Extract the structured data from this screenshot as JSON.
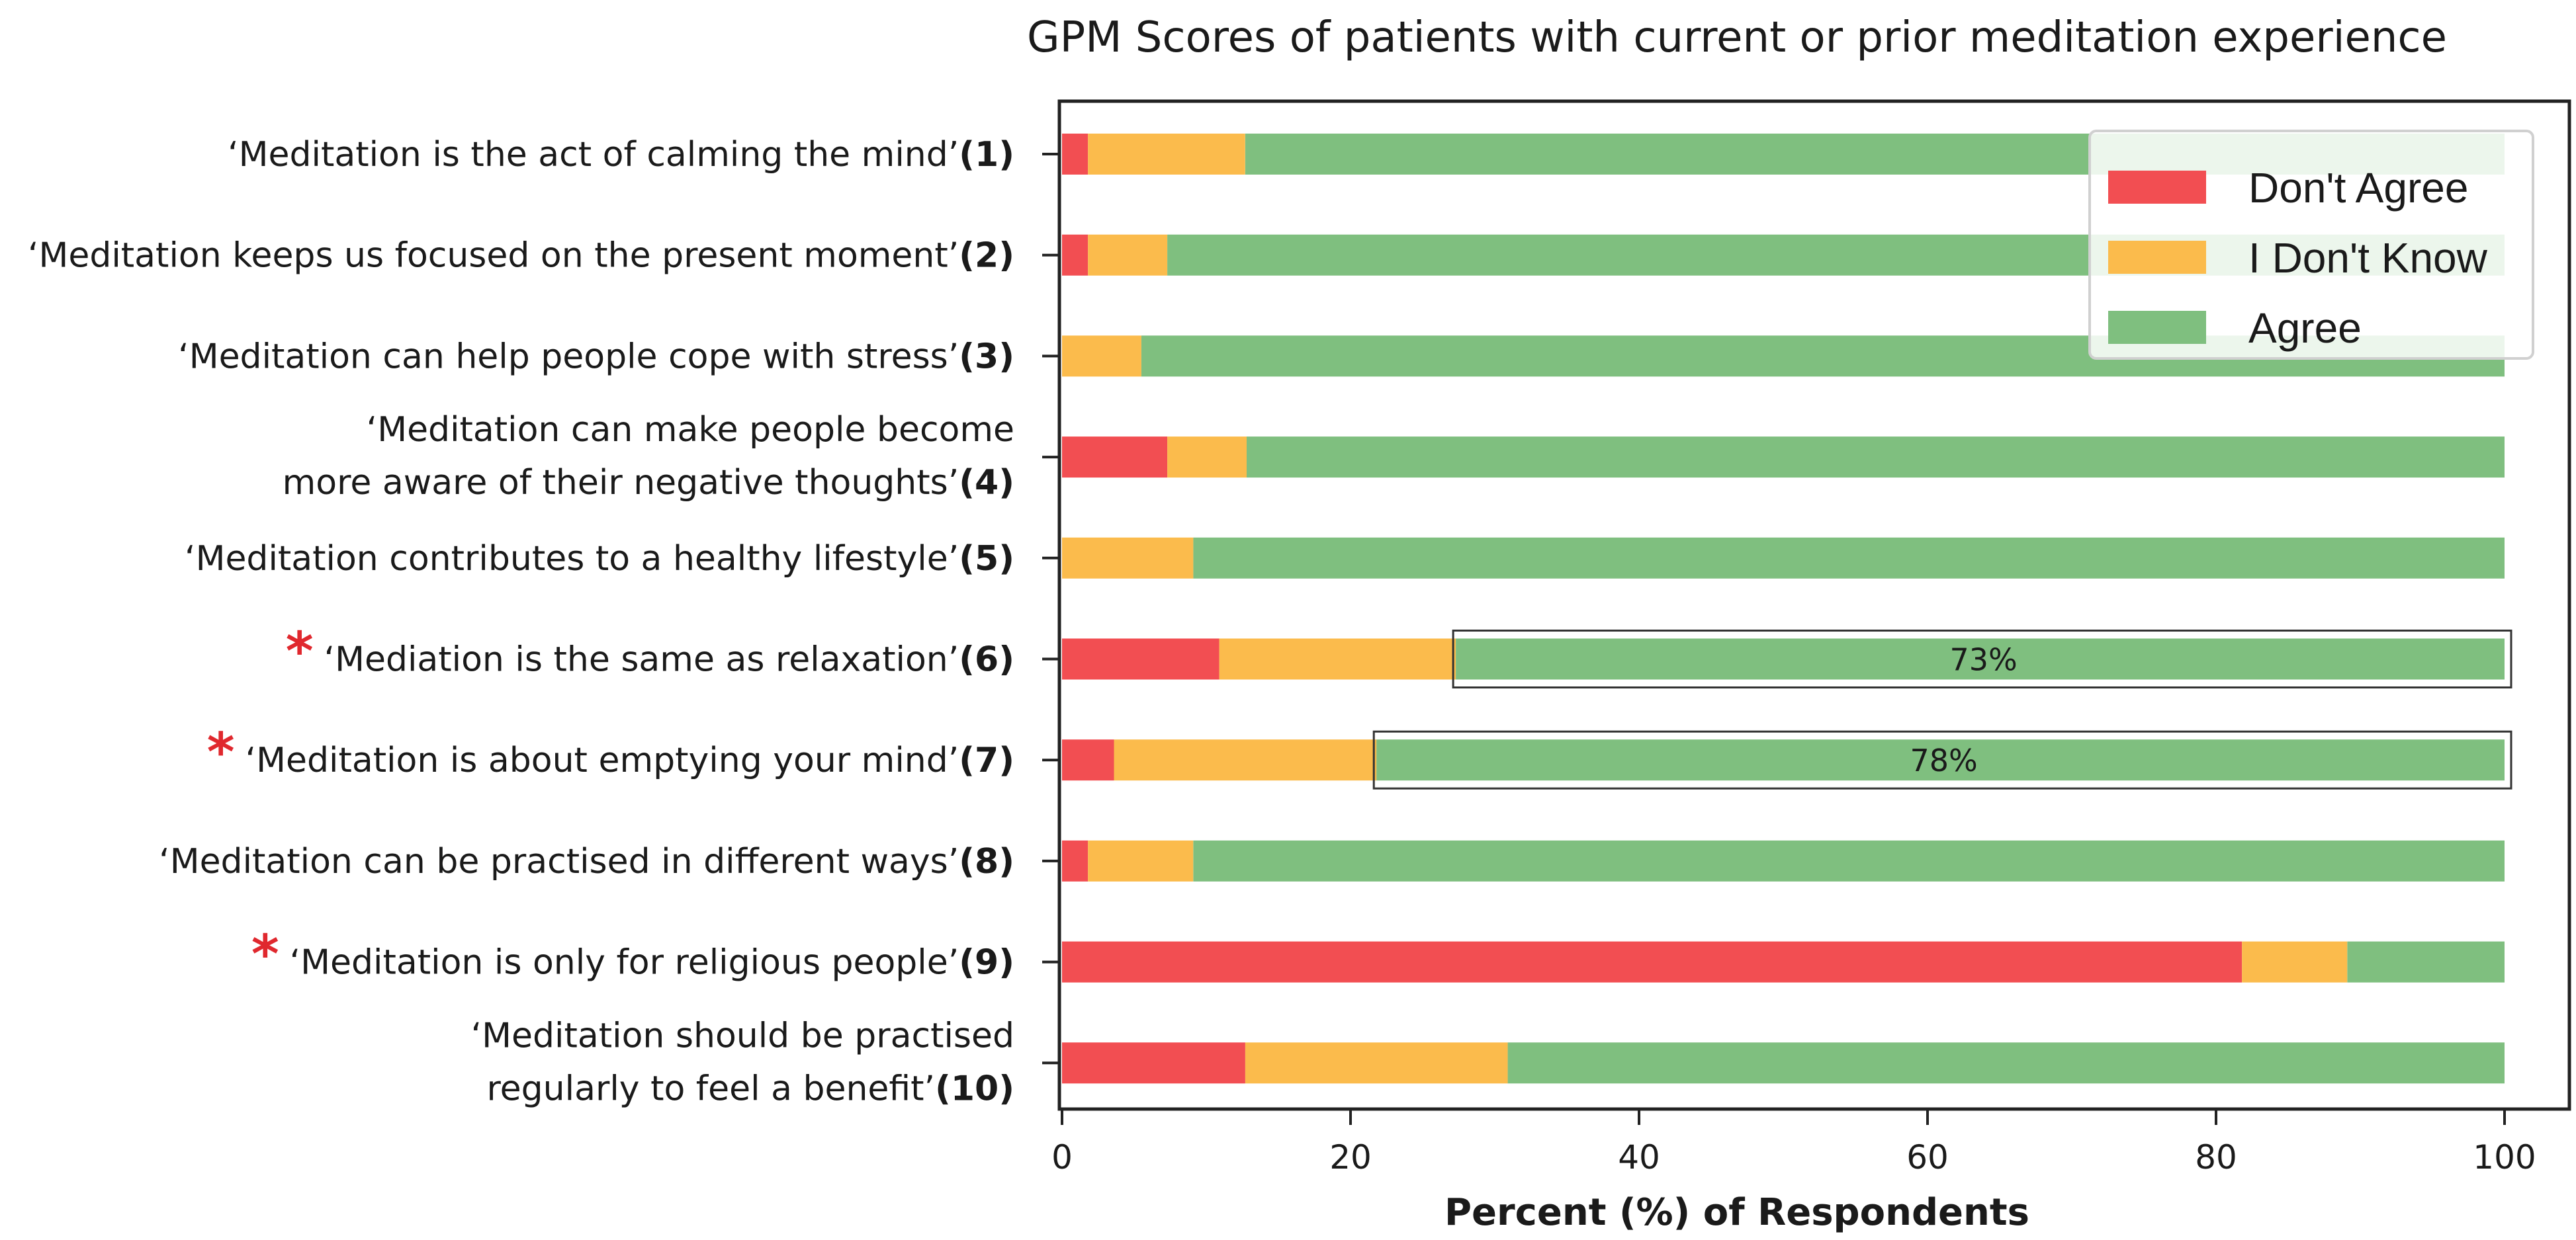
{
  "chart_data": {
    "type": "bar",
    "orientation": "horizontal-stacked",
    "title": "GPM Scores of patients with current or prior meditation experience",
    "xlabel": "Percent (%) of Respondents",
    "ylabel": "",
    "xlim": [
      0,
      100
    ],
    "xticks": [
      0,
      20,
      40,
      60,
      80,
      100
    ],
    "grid": false,
    "legend_position": "top-right",
    "colors": {
      "Don't Agree": "#f24e52",
      "I Don't Know": "#fbbb4c",
      "Agree": "#7fbf7f",
      "star": "#e0282e"
    },
    "categories": [
      {
        "text": "‘Meditation is the act of calming the mind’",
        "num": "(1)",
        "star": false
      },
      {
        "text": "‘Meditation keeps us focused on the present moment’",
        "num": "(2)",
        "star": false
      },
      {
        "text": "‘Meditation can help people cope with stress’",
        "num": "(3)",
        "star": false
      },
      {
        "line1": "‘Meditation can make people become",
        "text": "more aware of their negative thoughts’",
        "num": "(4)",
        "star": false
      },
      {
        "text": "‘Meditation contributes to a healthy lifestyle’",
        "num": "(5)",
        "star": false
      },
      {
        "text": "‘Mediation is the same as relaxation’",
        "num": "(6)",
        "star": true
      },
      {
        "text": "‘Meditation is about emptying your mind’",
        "num": "(7)",
        "star": true
      },
      {
        "text": "‘Meditation can be practised in different ways’",
        "num": "(8)",
        "star": false
      },
      {
        "text": "‘Meditation is only for religious people’",
        "num": "(9)",
        "star": true
      },
      {
        "line1": "‘Meditation should be practised",
        "text": "regularly to feel a benefit’",
        "num": "(10)",
        "star": false
      }
    ],
    "series": [
      {
        "name": "Don't Agree",
        "values": [
          1.8,
          1.8,
          0,
          7.3,
          0,
          10.9,
          3.6,
          1.8,
          81.8,
          12.7
        ]
      },
      {
        "name": "I Don't Know",
        "values": [
          10.9,
          5.5,
          5.5,
          5.5,
          9.1,
          16.4,
          18.2,
          7.3,
          7.3,
          18.2
        ]
      },
      {
        "name": "Agree",
        "values": [
          87.3,
          92.7,
          94.5,
          87.2,
          90.9,
          72.7,
          78.2,
          90.9,
          10.9,
          69.1
        ]
      }
    ],
    "annotations": [
      {
        "category_index": 5,
        "series": "Agree",
        "label": "73%"
      },
      {
        "category_index": 6,
        "series": "Agree",
        "label": "78%"
      }
    ]
  }
}
